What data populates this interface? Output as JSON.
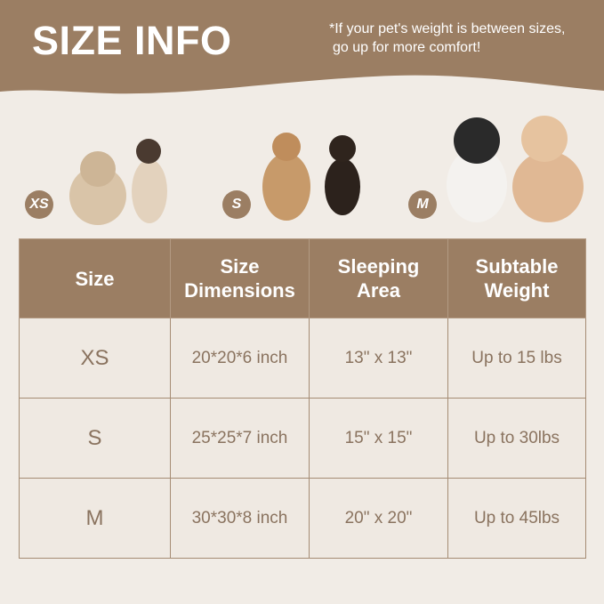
{
  "header": {
    "title": "SIZE INFO",
    "note_line1": "*If your pet's weight is between sizes,",
    "note_line2": "go up for more comfort!"
  },
  "colors": {
    "brand": "#9b7e63",
    "background": "#f1ece6",
    "cell": "#efe9e2",
    "cell_text": "#8a735f"
  },
  "pets": [
    {
      "badge": "XS",
      "animals": [
        "persian-cat",
        "siamese-cat"
      ]
    },
    {
      "badge": "S",
      "animals": [
        "maine-coon-cat",
        "dachshund"
      ]
    },
    {
      "badge": "M",
      "animals": [
        "french-bulldog",
        "poodle"
      ]
    }
  ],
  "table": {
    "headers": [
      [
        "Size"
      ],
      [
        "Size",
        "Dimensions"
      ],
      [
        "Sleeping",
        "Area"
      ],
      [
        "Subtable",
        "Weight"
      ]
    ],
    "rows": [
      [
        "XS",
        "20*20*6 inch",
        "13\" x 13\"",
        "Up to 15 lbs"
      ],
      [
        "S",
        "25*25*7 inch",
        "15\" x 15\"",
        "Up to 30lbs"
      ],
      [
        "M",
        "30*30*8 inch",
        "20\" x 20\"",
        "Up to 45lbs"
      ]
    ]
  }
}
